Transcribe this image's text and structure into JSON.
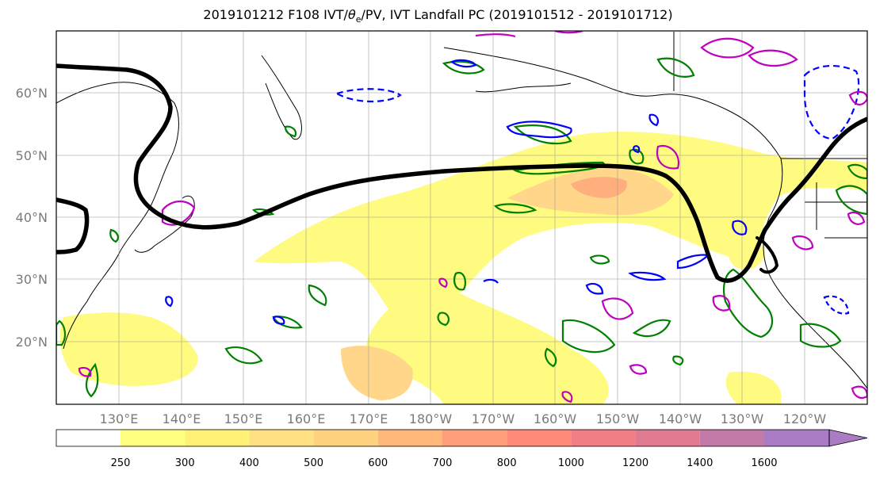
{
  "title_prefix": "2019101212 F108 IVT/",
  "title_theta": "θ",
  "title_theta_sub": "e",
  "title_suffix": "/PV, IVT Landfall PC (2019101512 - 2019101712)",
  "lat_labels": [
    "60°N",
    "50°N",
    "40°N",
    "30°N",
    "20°N"
  ],
  "lon_labels": [
    "130°E",
    "140°E",
    "150°E",
    "160°E",
    "170°E",
    "180°W",
    "170°W",
    "160°W",
    "150°W",
    "140°W",
    "130°W",
    "120°W"
  ],
  "colorbar": {
    "levels": [
      "250",
      "300",
      "400",
      "500",
      "600",
      "700",
      "800",
      "1000",
      "1200",
      "1400",
      "1600"
    ],
    "colors": [
      "#ffff80",
      "#fff176",
      "#ffe082",
      "#ffd27f",
      "#ffb77a",
      "#ff9f7a",
      "#ff8a7a",
      "#f27e85",
      "#e07a90",
      "#c47aa8",
      "#a97cc4"
    ]
  },
  "colors": {
    "pv_contour": "#000000",
    "theta_e_positive": "#008000",
    "theta_e_negative": "#0000ff",
    "landfall": "#c000c0",
    "ivt_low": "#fffb80",
    "ivt_mid": "#ffd68a",
    "ivt_high": "#ffa07a"
  }
}
